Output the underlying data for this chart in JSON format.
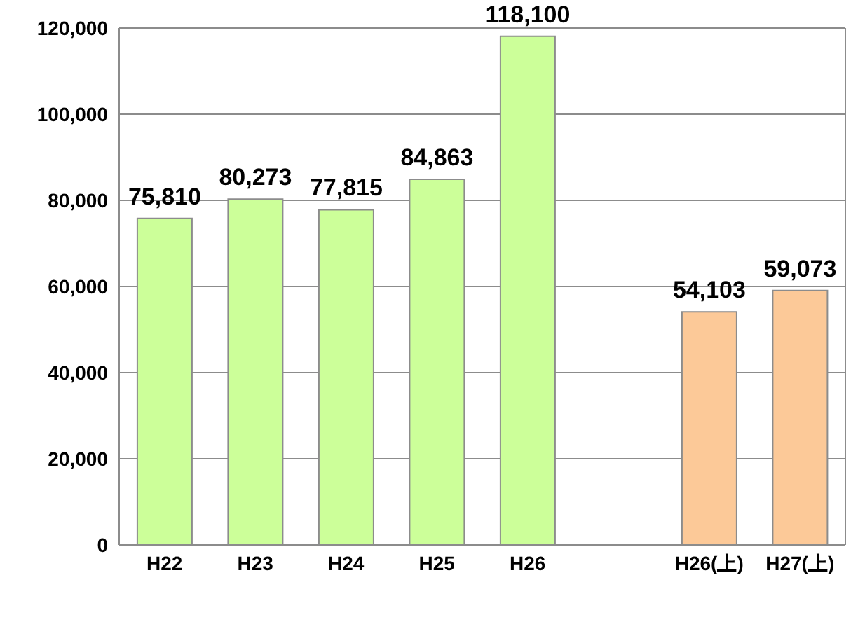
{
  "chart_data": {
    "type": "bar",
    "categories": [
      "H22",
      "H23",
      "H24",
      "H25",
      "H26",
      null,
      "H26(上)",
      "H27(上)"
    ],
    "values": [
      75810,
      80273,
      77815,
      84863,
      118100,
      null,
      54103,
      59073
    ],
    "colors": [
      "#ccff99",
      "#ccff99",
      "#ccff99",
      "#ccff99",
      "#ccff99",
      "#ccff99",
      "#fcc998",
      "#fcc998"
    ],
    "ylim": [
      0,
      120000
    ],
    "yticks": [
      {
        "value": 0,
        "label": "0"
      },
      {
        "value": 20000,
        "label": "20,000"
      },
      {
        "value": 40000,
        "label": "40,000"
      },
      {
        "value": 60000,
        "label": "60,000"
      },
      {
        "value": 80000,
        "label": "80,000"
      },
      {
        "value": 100000,
        "label": "100,000"
      },
      {
        "value": 120000,
        "label": "120,000"
      }
    ],
    "value_labels": [
      "75,810",
      "80,273",
      "77,815",
      "84,863",
      "118,100",
      null,
      "54,103",
      "59,073"
    ],
    "grid": "y",
    "legend": false
  }
}
